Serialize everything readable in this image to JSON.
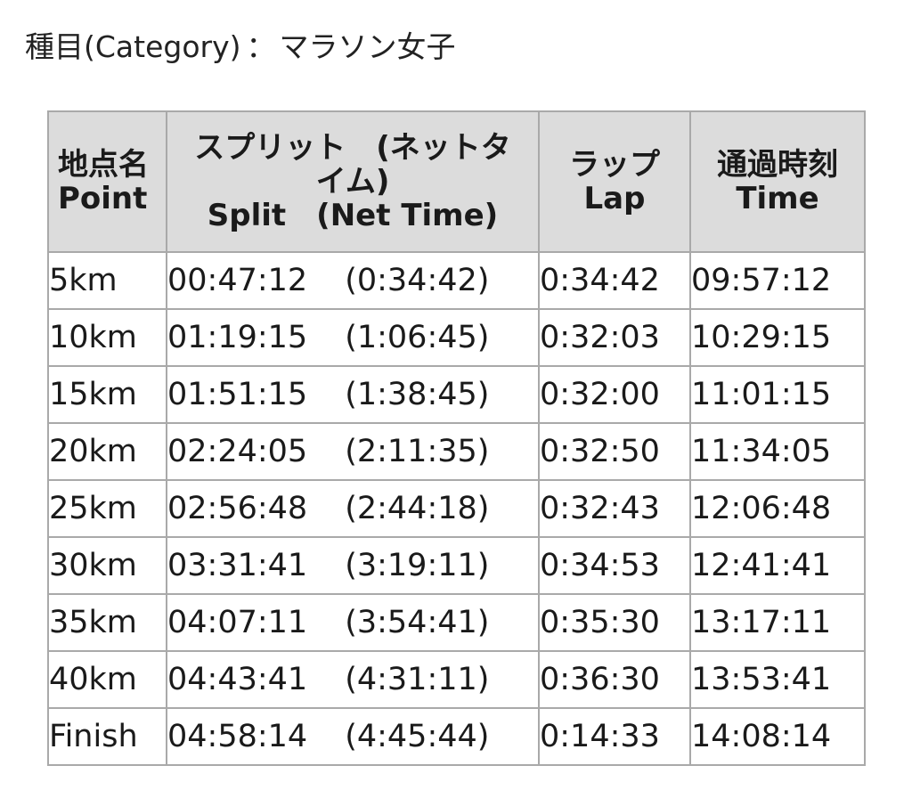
{
  "category": {
    "label": "種目(Category)",
    "separator": "：",
    "value": "マラソン女子"
  },
  "table": {
    "headers": {
      "point": [
        "地点名",
        "Point"
      ],
      "split": [
        "スプリット　(ネットタ",
        "イム)",
        "Split　(Net Time)"
      ],
      "lap": [
        "ラップ",
        "Lap"
      ],
      "time": [
        "通過時刻",
        "Time"
      ]
    },
    "rows": [
      {
        "point": "5km",
        "split": "00:47:12",
        "net": "(0:34:42)",
        "lap": "0:34:42",
        "time": "09:57:12"
      },
      {
        "point": "10km",
        "split": "01:19:15",
        "net": "(1:06:45)",
        "lap": "0:32:03",
        "time": "10:29:15"
      },
      {
        "point": "15km",
        "split": "01:51:15",
        "net": "(1:38:45)",
        "lap": "0:32:00",
        "time": "11:01:15"
      },
      {
        "point": "20km",
        "split": "02:24:05",
        "net": "(2:11:35)",
        "lap": "0:32:50",
        "time": "11:34:05"
      },
      {
        "point": "25km",
        "split": "02:56:48",
        "net": "(2:44:18)",
        "lap": "0:32:43",
        "time": "12:06:48"
      },
      {
        "point": "30km",
        "split": "03:31:41",
        "net": "(3:19:11)",
        "lap": "0:34:53",
        "time": "12:41:41"
      },
      {
        "point": "35km",
        "split": "04:07:11",
        "net": "(3:54:41)",
        "lap": "0:35:30",
        "time": "13:17:11"
      },
      {
        "point": "40km",
        "split": "04:43:41",
        "net": "(4:31:11)",
        "lap": "0:36:30",
        "time": "13:53:41"
      },
      {
        "point": "Finish",
        "split": "04:58:14",
        "net": "(4:45:44)",
        "lap": "0:14:33",
        "time": "14:08:14"
      }
    ]
  }
}
